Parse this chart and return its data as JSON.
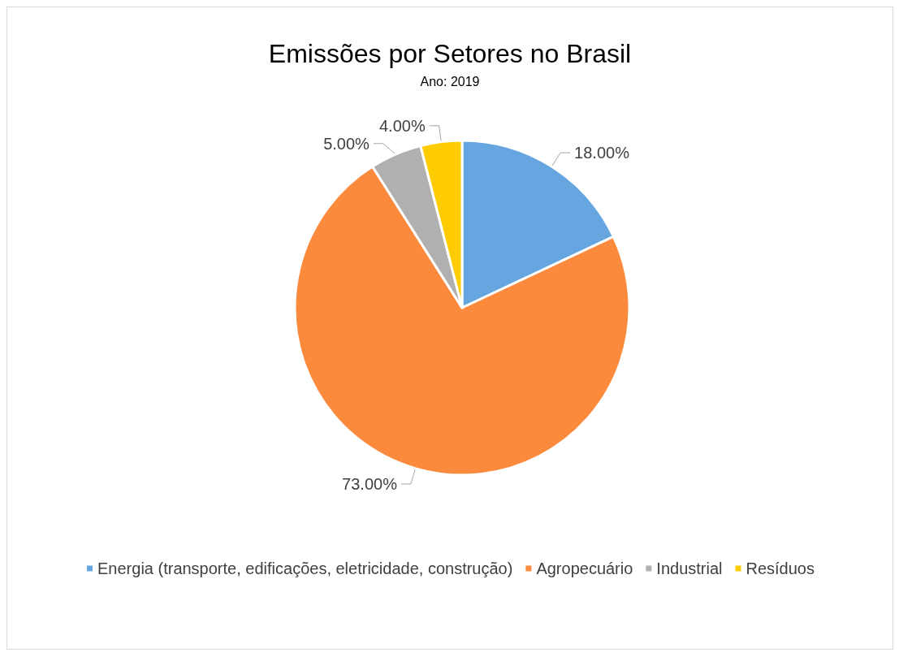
{
  "chart_data": {
    "type": "pie",
    "title": "Emissões por Setores no Brasil",
    "subtitle": "Ano: 2019",
    "categories": [
      "Energia (transporte, edificações, eletricidade, construção)",
      "Agropecuário",
      "Industrial",
      "Resíduos"
    ],
    "values": [
      18,
      73,
      5,
      4
    ],
    "colors": [
      "#65a6e0",
      "#fb8a3c",
      "#b0b0b0",
      "#ffcc00"
    ],
    "value_labels": [
      "18.00%",
      "73.00%",
      "5.00%",
      "4.00%"
    ],
    "legend": "bottom"
  }
}
